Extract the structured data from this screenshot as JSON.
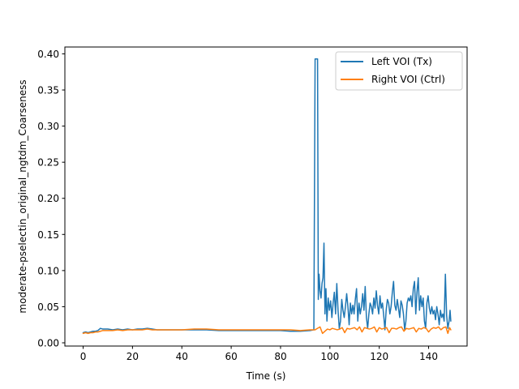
{
  "chart_data": {
    "type": "line",
    "title": "",
    "xlabel": "Time (s)",
    "ylabel": "moderate-pselectin_original_ngtdm_Coarseness",
    "xlim": [
      -7.4,
      155.6
    ],
    "ylim": [
      -0.0045,
      0.4095
    ],
    "xticks": [
      0,
      20,
      40,
      60,
      80,
      100,
      120,
      140
    ],
    "xtick_labels": [
      "0",
      "20",
      "40",
      "60",
      "80",
      "100",
      "120",
      "140"
    ],
    "yticks": [
      0.0,
      0.05,
      0.1,
      0.15,
      0.2,
      0.25,
      0.3,
      0.35,
      0.4
    ],
    "ytick_labels": [
      "0.00",
      "0.05",
      "0.10",
      "0.15",
      "0.20",
      "0.25",
      "0.30",
      "0.35",
      "0.40"
    ],
    "grid": false,
    "legend": {
      "position": "top-right"
    },
    "series": [
      {
        "name": "Left VOI (Tx)",
        "color": "#1f77b4",
        "points": [
          [
            0,
            0.014
          ],
          [
            1,
            0.015
          ],
          [
            2,
            0.014
          ],
          [
            3,
            0.015
          ],
          [
            4,
            0.016
          ],
          [
            5,
            0.016
          ],
          [
            6,
            0.017
          ],
          [
            7,
            0.02
          ],
          [
            8,
            0.019
          ],
          [
            10,
            0.019
          ],
          [
            12,
            0.018
          ],
          [
            14,
            0.019
          ],
          [
            16,
            0.018
          ],
          [
            18,
            0.019
          ],
          [
            20,
            0.018
          ],
          [
            22,
            0.019
          ],
          [
            24,
            0.019
          ],
          [
            26,
            0.02
          ],
          [
            28,
            0.019
          ],
          [
            30,
            0.018
          ],
          [
            35,
            0.018
          ],
          [
            40,
            0.018
          ],
          [
            45,
            0.018
          ],
          [
            50,
            0.018
          ],
          [
            55,
            0.017
          ],
          [
            60,
            0.017
          ],
          [
            65,
            0.017
          ],
          [
            70,
            0.017
          ],
          [
            75,
            0.017
          ],
          [
            80,
            0.017
          ],
          [
            84,
            0.016
          ],
          [
            88,
            0.016
          ],
          [
            92,
            0.017
          ],
          [
            93.5,
            0.018
          ],
          [
            94.0,
            0.393
          ],
          [
            94.5,
            0.393
          ],
          [
            95.0,
            0.393
          ],
          [
            95.3,
            0.06
          ],
          [
            95.6,
            0.095
          ],
          [
            96.0,
            0.072
          ],
          [
            96.4,
            0.062
          ],
          [
            96.8,
            0.082
          ],
          [
            97.2,
            0.09
          ],
          [
            97.6,
            0.138
          ],
          [
            98.0,
            0.04
          ],
          [
            98.4,
            0.075
          ],
          [
            98.8,
            0.03
          ],
          [
            99.3,
            0.062
          ],
          [
            99.8,
            0.045
          ],
          [
            100.3,
            0.058
          ],
          [
            100.8,
            0.035
          ],
          [
            101.3,
            0.055
          ],
          [
            101.8,
            0.07
          ],
          [
            102.3,
            0.04
          ],
          [
            102.8,
            0.082
          ],
          [
            103.3,
            0.045
          ],
          [
            103.8,
            0.02
          ],
          [
            104.3,
            0.03
          ],
          [
            104.8,
            0.06
          ],
          [
            105.3,
            0.045
          ],
          [
            105.8,
            0.035
          ],
          [
            106.3,
            0.05
          ],
          [
            106.8,
            0.068
          ],
          [
            107.3,
            0.05
          ],
          [
            107.8,
            0.025
          ],
          [
            108.3,
            0.055
          ],
          [
            108.8,
            0.04
          ],
          [
            109.3,
            0.052
          ],
          [
            109.8,
            0.04
          ],
          [
            110.3,
            0.06
          ],
          [
            110.8,
            0.075
          ],
          [
            111.3,
            0.03
          ],
          [
            111.8,
            0.055
          ],
          [
            112.3,
            0.04
          ],
          [
            112.8,
            0.05
          ],
          [
            113.3,
            0.068
          ],
          [
            113.8,
            0.045
          ],
          [
            114.3,
            0.078
          ],
          [
            114.8,
            0.035
          ],
          [
            115.3,
            0.02
          ],
          [
            115.8,
            0.04
          ],
          [
            116.3,
            0.055
          ],
          [
            116.8,
            0.05
          ],
          [
            117.3,
            0.04
          ],
          [
            117.8,
            0.062
          ],
          [
            118.3,
            0.048
          ],
          [
            118.8,
            0.072
          ],
          [
            119.3,
            0.052
          ],
          [
            119.8,
            0.04
          ],
          [
            120.3,
            0.065
          ],
          [
            120.8,
            0.048
          ],
          [
            121.3,
            0.055
          ],
          [
            121.8,
            0.038
          ],
          [
            122.3,
            0.018
          ],
          [
            122.8,
            0.045
          ],
          [
            123.3,
            0.06
          ],
          [
            123.8,
            0.055
          ],
          [
            124.3,
            0.04
          ],
          [
            124.8,
            0.05
          ],
          [
            125.3,
            0.07
          ],
          [
            125.8,
            0.085
          ],
          [
            126.3,
            0.052
          ],
          [
            126.8,
            0.045
          ],
          [
            127.3,
            0.06
          ],
          [
            127.8,
            0.048
          ],
          [
            128.3,
            0.035
          ],
          [
            128.8,
            0.058
          ],
          [
            129.3,
            0.052
          ],
          [
            129.8,
            0.04
          ],
          [
            130.3,
            0.018
          ],
          [
            130.8,
            0.03
          ],
          [
            131.3,
            0.055
          ],
          [
            131.8,
            0.062
          ],
          [
            132.3,
            0.058
          ],
          [
            132.8,
            0.065
          ],
          [
            133.3,
            0.05
          ],
          [
            133.8,
            0.075
          ],
          [
            134.3,
            0.085
          ],
          [
            134.8,
            0.04
          ],
          [
            135.3,
            0.07
          ],
          [
            135.8,
            0.09
          ],
          [
            136.3,
            0.045
          ],
          [
            136.8,
            0.065
          ],
          [
            137.3,
            0.05
          ],
          [
            137.8,
            0.062
          ],
          [
            138.3,
            0.03
          ],
          [
            138.8,
            0.02
          ],
          [
            139.3,
            0.055
          ],
          [
            139.8,
            0.065
          ],
          [
            140.3,
            0.048
          ],
          [
            140.8,
            0.04
          ],
          [
            141.3,
            0.05
          ],
          [
            141.8,
            0.04
          ],
          [
            142.3,
            0.045
          ],
          [
            142.8,
            0.032
          ],
          [
            143.3,
            0.05
          ],
          [
            143.8,
            0.04
          ],
          [
            144.3,
            0.025
          ],
          [
            144.8,
            0.045
          ],
          [
            145.3,
            0.035
          ],
          [
            145.8,
            0.04
          ],
          [
            146.3,
            0.03
          ],
          [
            146.8,
            0.095
          ],
          [
            147.3,
            0.038
          ],
          [
            147.8,
            0.02
          ],
          [
            148.3,
            0.03
          ],
          [
            148.7,
            0.045
          ],
          [
            149.0,
            0.03
          ]
        ]
      },
      {
        "name": "Right VOI (Ctrl)",
        "color": "#ff7f0e",
        "points": [
          [
            0,
            0.013
          ],
          [
            1,
            0.014
          ],
          [
            2,
            0.013
          ],
          [
            3,
            0.014
          ],
          [
            4,
            0.014
          ],
          [
            5,
            0.015
          ],
          [
            6,
            0.015
          ],
          [
            7,
            0.016
          ],
          [
            8,
            0.017
          ],
          [
            10,
            0.017
          ],
          [
            12,
            0.017
          ],
          [
            14,
            0.018
          ],
          [
            16,
            0.017
          ],
          [
            18,
            0.018
          ],
          [
            20,
            0.018
          ],
          [
            22,
            0.018
          ],
          [
            24,
            0.018
          ],
          [
            26,
            0.019
          ],
          [
            28,
            0.018
          ],
          [
            30,
            0.018
          ],
          [
            35,
            0.018
          ],
          [
            40,
            0.018
          ],
          [
            45,
            0.019
          ],
          [
            50,
            0.019
          ],
          [
            55,
            0.018
          ],
          [
            60,
            0.018
          ],
          [
            65,
            0.018
          ],
          [
            70,
            0.018
          ],
          [
            75,
            0.018
          ],
          [
            80,
            0.018
          ],
          [
            84,
            0.018
          ],
          [
            88,
            0.017
          ],
          [
            92,
            0.018
          ],
          [
            94.0,
            0.018
          ],
          [
            95.0,
            0.02
          ],
          [
            96.0,
            0.022
          ],
          [
            97.0,
            0.013
          ],
          [
            98.0,
            0.016
          ],
          [
            99.0,
            0.019
          ],
          [
            100.0,
            0.018
          ],
          [
            101.0,
            0.02
          ],
          [
            102.0,
            0.019
          ],
          [
            103.0,
            0.018
          ],
          [
            104.0,
            0.019
          ],
          [
            105.0,
            0.021
          ],
          [
            106.0,
            0.014
          ],
          [
            107.0,
            0.02
          ],
          [
            108.0,
            0.019
          ],
          [
            109.0,
            0.02
          ],
          [
            110.0,
            0.021
          ],
          [
            111.0,
            0.018
          ],
          [
            112.0,
            0.022
          ],
          [
            113.0,
            0.015
          ],
          [
            114.0,
            0.021
          ],
          [
            115.0,
            0.02
          ],
          [
            116.0,
            0.019
          ],
          [
            117.0,
            0.02
          ],
          [
            118.0,
            0.022
          ],
          [
            119.0,
            0.015
          ],
          [
            120.0,
            0.021
          ],
          [
            121.0,
            0.019
          ],
          [
            122.0,
            0.02
          ],
          [
            123.0,
            0.021
          ],
          [
            124.0,
            0.014
          ],
          [
            125.0,
            0.02
          ],
          [
            126.0,
            0.02
          ],
          [
            127.0,
            0.019
          ],
          [
            128.0,
            0.021
          ],
          [
            129.0,
            0.022
          ],
          [
            130.0,
            0.016
          ],
          [
            131.0,
            0.02
          ],
          [
            132.0,
            0.019
          ],
          [
            133.0,
            0.02
          ],
          [
            134.0,
            0.021
          ],
          [
            135.0,
            0.015
          ],
          [
            136.0,
            0.02
          ],
          [
            137.0,
            0.019
          ],
          [
            138.0,
            0.021
          ],
          [
            139.0,
            0.02
          ],
          [
            140.0,
            0.015
          ],
          [
            141.0,
            0.019
          ],
          [
            142.0,
            0.021
          ],
          [
            143.0,
            0.02
          ],
          [
            144.0,
            0.022
          ],
          [
            145.0,
            0.018
          ],
          [
            146.0,
            0.021
          ],
          [
            147.0,
            0.022
          ],
          [
            147.8,
            0.013
          ],
          [
            148.5,
            0.021
          ],
          [
            149.0,
            0.018
          ]
        ]
      }
    ]
  }
}
